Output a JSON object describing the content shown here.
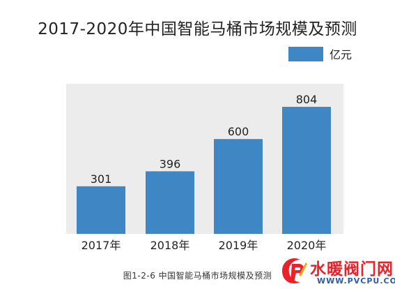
{
  "chart_data": {
    "type": "bar",
    "title": "2017-2020年中国智能马桶市场规模及预测",
    "categories": [
      "2017年",
      "2018年",
      "2019年",
      "2020年"
    ],
    "series": [
      {
        "name": "亿元",
        "values": [
          301,
          396,
          600,
          804
        ]
      }
    ],
    "data_labels": [
      "301",
      "396",
      "600",
      "804"
    ],
    "ylim": [
      0,
      950
    ],
    "grid": false,
    "legend_position": "top-right",
    "bar_color": "#3f86c5",
    "plot_background": "#ececec"
  },
  "caption": "图1-2-6 中国智能马桶市场规模及预测",
  "watermark": {
    "name": "水暖阀门网",
    "url": "WWW.PVCPU.COM",
    "colors": {
      "name": "#e8212b",
      "url": "#2a5aa8"
    }
  }
}
